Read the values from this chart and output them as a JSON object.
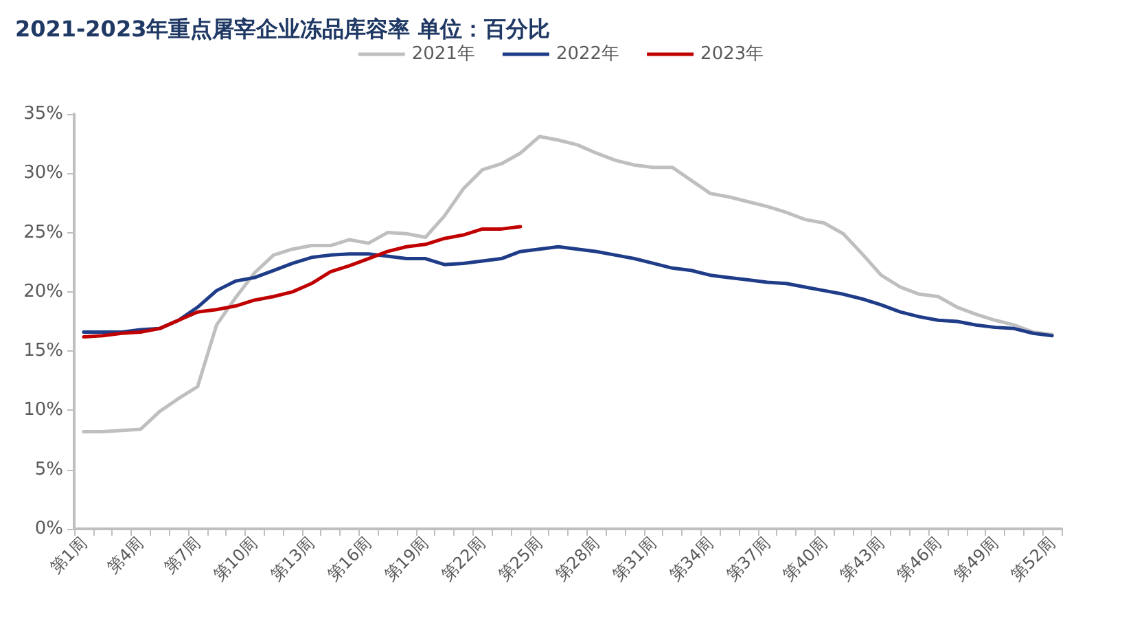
{
  "chart_data": {
    "type": "line",
    "title": "2021-2023年重点屠宰企业冻品库容率 单位：百分比",
    "categories": [
      "第1周",
      null,
      null,
      "第4周",
      null,
      null,
      "第7周",
      null,
      null,
      "第10周",
      null,
      null,
      "第13周",
      null,
      null,
      "第16周",
      null,
      null,
      "第19周",
      null,
      null,
      "第22周",
      null,
      null,
      "第25周",
      null,
      null,
      "第28周",
      null,
      null,
      "第31周",
      null,
      null,
      "第34周",
      null,
      null,
      "第37周",
      null,
      null,
      "第40周",
      null,
      null,
      "第43周",
      null,
      null,
      "第46周",
      null,
      null,
      "第49周",
      null,
      null,
      "第52周"
    ],
    "series": [
      {
        "name": "2021年",
        "color": "#bfbfbf",
        "values": [
          8.2,
          8.2,
          8.3,
          8.4,
          9.9,
          11.0,
          12.0,
          17.2,
          19.5,
          21.6,
          23.1,
          23.6,
          23.9,
          23.9,
          24.4,
          24.1,
          25.0,
          24.9,
          24.6,
          26.4,
          28.7,
          30.3,
          30.8,
          31.7,
          33.1,
          32.8,
          32.4,
          31.7,
          31.1,
          30.7,
          30.5,
          30.5,
          29.4,
          28.3,
          28.0,
          27.6,
          27.2,
          26.7,
          26.1,
          25.8,
          24.9,
          23.2,
          21.4,
          20.4,
          19.8,
          19.6,
          18.7,
          18.1,
          17.6,
          17.2,
          16.6,
          16.4
        ]
      },
      {
        "name": "2022年",
        "color": "#1f3c88",
        "values": [
          16.6,
          16.6,
          16.6,
          16.8,
          16.9,
          17.6,
          18.7,
          20.1,
          20.9,
          21.2,
          21.8,
          22.4,
          22.9,
          23.1,
          23.2,
          23.2,
          23.0,
          22.8,
          22.8,
          22.3,
          22.4,
          22.6,
          22.8,
          23.4,
          23.6,
          23.8,
          23.6,
          23.4,
          23.1,
          22.8,
          22.4,
          22.0,
          21.8,
          21.4,
          21.2,
          21.0,
          20.8,
          20.7,
          20.4,
          20.1,
          19.8,
          19.4,
          18.9,
          18.3,
          17.9,
          17.6,
          17.5,
          17.2,
          17.0,
          16.9,
          16.5,
          16.3
        ]
      },
      {
        "name": "2023年",
        "color": "#c00000",
        "values": [
          16.2,
          16.3,
          16.5,
          16.6,
          16.9,
          17.6,
          18.3,
          18.5,
          18.8,
          19.3,
          19.6,
          20.0,
          20.7,
          21.7,
          22.2,
          22.8,
          23.4,
          23.8,
          24.0,
          24.5,
          24.8,
          25.3,
          25.3,
          25.5,
          null,
          null,
          null,
          null,
          null,
          null,
          null,
          null,
          null,
          null,
          null,
          null,
          null,
          null,
          null,
          null,
          null,
          null,
          null,
          null,
          null,
          null,
          null,
          null,
          null,
          null,
          null,
          null
        ]
      }
    ],
    "ylim": [
      0,
      35
    ],
    "yticks": [
      {
        "value": 0,
        "label": "0%"
      },
      {
        "value": 5,
        "label": "5%"
      },
      {
        "value": 10,
        "label": "10%"
      },
      {
        "value": 15,
        "label": "15%"
      },
      {
        "value": 20,
        "label": "20%"
      },
      {
        "value": 25,
        "label": "25%"
      },
      {
        "value": 30,
        "label": "30%"
      },
      {
        "value": 35,
        "label": "35%"
      }
    ],
    "legend": "top",
    "grid": false,
    "marker": "none",
    "line_style": "solid"
  }
}
